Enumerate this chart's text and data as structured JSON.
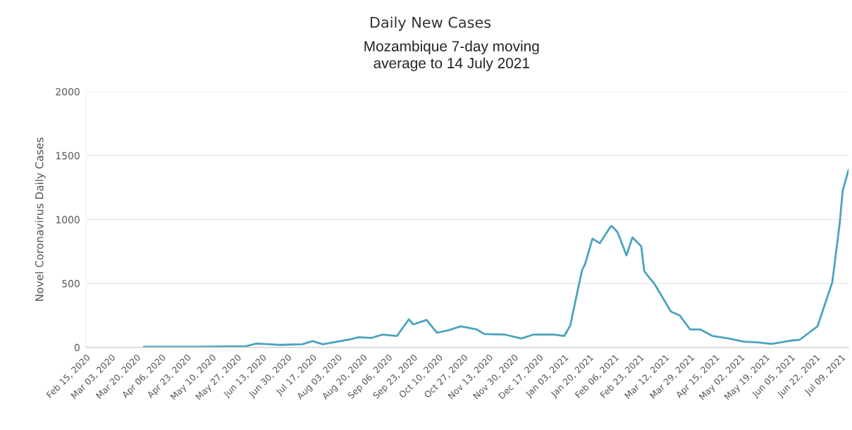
{
  "chart_data": {
    "type": "line",
    "title": "Daily New Cases",
    "subtitle": "Mozambique 7-day moving\naverage to 14 July 2021",
    "ylabel": "Novel Coronavirus Daily Cases",
    "x": [
      "2020-03-25",
      "2020-04-30",
      "2020-06-02",
      "2020-06-09",
      "2020-06-18",
      "2020-06-25",
      "2020-07-10",
      "2020-07-17",
      "2020-07-24",
      "2020-07-31",
      "2020-08-12",
      "2020-08-17",
      "2020-08-26",
      "2020-09-02",
      "2020-09-12",
      "2020-09-20",
      "2020-09-23",
      "2020-10-02",
      "2020-10-09",
      "2020-10-17",
      "2020-10-25",
      "2020-11-05",
      "2020-11-10",
      "2020-11-24",
      "2020-12-05",
      "2020-12-13",
      "2020-12-27",
      "2021-01-03",
      "2021-01-07",
      "2021-01-11",
      "2021-01-15",
      "2021-01-17",
      "2021-01-22",
      "2021-01-27",
      "2021-02-03",
      "2021-02-04",
      "2021-02-08",
      "2021-02-14",
      "2021-02-18",
      "2021-02-24",
      "2021-02-26",
      "2021-03-05",
      "2021-03-16",
      "2021-03-22",
      "2021-03-29",
      "2021-04-05",
      "2021-04-13",
      "2021-04-24",
      "2021-05-04",
      "2021-05-13",
      "2021-05-23",
      "2021-06-06",
      "2021-06-11",
      "2021-06-23",
      "2021-07-03",
      "2021-07-08",
      "2021-07-10",
      "2021-07-14"
    ],
    "series": [
      {
        "color": "#4aa3c0",
        "values": [
          5,
          5,
          10,
          30,
          25,
          20,
          25,
          50,
          25,
          40,
          65,
          80,
          75,
          100,
          90,
          220,
          180,
          215,
          115,
          135,
          165,
          140,
          105,
          100,
          70,
          100,
          100,
          90,
          170,
          390,
          605,
          650,
          850,
          815,
          940,
          950,
          900,
          720,
          860,
          790,
          595,
          495,
          280,
          250,
          140,
          140,
          90,
          70,
          45,
          40,
          28,
          55,
          60,
          165,
          510,
          970,
          1225,
          1390
        ]
      }
    ],
    "xlim": [
      "2020-02-15",
      "2021-07-14"
    ],
    "xticks": [
      {
        "value": "2020-02-15",
        "label": "Feb 15, 2020"
      },
      {
        "value": "2020-03-03",
        "label": "Mar 03, 2020"
      },
      {
        "value": "2020-03-20",
        "label": "Mar 20, 2020"
      },
      {
        "value": "2020-04-06",
        "label": "Apr 06, 2020"
      },
      {
        "value": "2020-04-23",
        "label": "Apr 23, 2020"
      },
      {
        "value": "2020-05-10",
        "label": "May 10, 2020"
      },
      {
        "value": "2020-05-27",
        "label": "May 27, 2020"
      },
      {
        "value": "2020-06-13",
        "label": "Jun 13, 2020"
      },
      {
        "value": "2020-06-30",
        "label": "Jun 30, 2020"
      },
      {
        "value": "2020-07-17",
        "label": "Jul 17, 2020"
      },
      {
        "value": "2020-08-03",
        "label": "Aug 03, 2020"
      },
      {
        "value": "2020-08-20",
        "label": "Aug 20, 2020"
      },
      {
        "value": "2020-09-06",
        "label": "Sep 06, 2020"
      },
      {
        "value": "2020-09-23",
        "label": "Sep 23, 2020"
      },
      {
        "value": "2020-10-10",
        "label": "Oct 10, 2020"
      },
      {
        "value": "2020-10-27",
        "label": "Oct 27, 2020"
      },
      {
        "value": "2020-11-13",
        "label": "Nov 13, 2020"
      },
      {
        "value": "2020-11-30",
        "label": "Nov 30, 2020"
      },
      {
        "value": "2020-12-17",
        "label": "Dec 17, 2020"
      },
      {
        "value": "2021-01-03",
        "label": "Jan 03, 2021"
      },
      {
        "value": "2021-01-20",
        "label": "Jan 20, 2021"
      },
      {
        "value": "2021-02-06",
        "label": "Feb 06, 2021"
      },
      {
        "value": "2021-02-23",
        "label": "Feb 23, 2021"
      },
      {
        "value": "2021-03-12",
        "label": "Mar 12, 2021"
      },
      {
        "value": "2021-03-29",
        "label": "Mar 29, 2021"
      },
      {
        "value": "2021-04-15",
        "label": "Apr 15, 2021"
      },
      {
        "value": "2021-05-02",
        "label": "May 02, 2021"
      },
      {
        "value": "2021-05-19",
        "label": "May 19, 2021"
      },
      {
        "value": "2021-06-05",
        "label": "Jun 05, 2021"
      },
      {
        "value": "2021-06-22",
        "label": "Jun 22, 2021"
      },
      {
        "value": "2021-07-09",
        "label": "Jul 09, 2021"
      }
    ],
    "ylim": [
      0,
      2000
    ],
    "yticks": [
      0,
      500,
      1000,
      1500,
      2000
    ],
    "grid": "y",
    "marker": "none",
    "line_style": "solid"
  }
}
